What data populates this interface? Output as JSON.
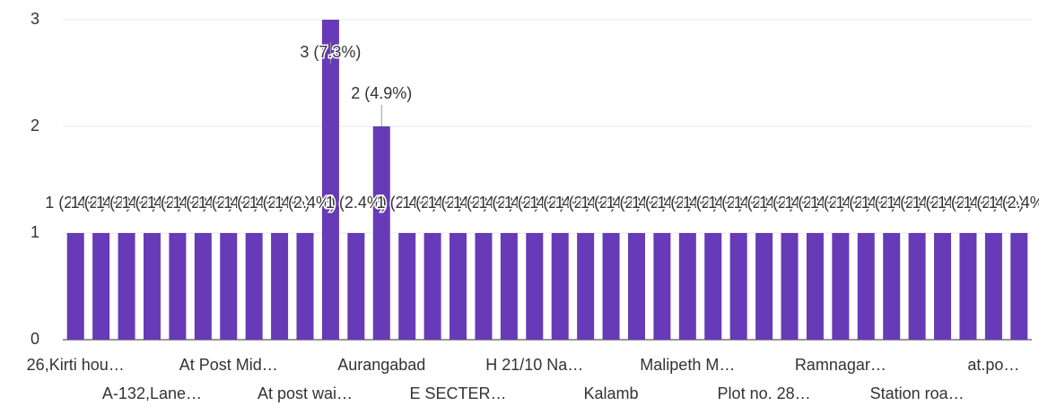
{
  "chart_data": {
    "type": "bar",
    "categories": [
      "26,Kirti hou…",
      null,
      null,
      "A-132,Lane…",
      null,
      null,
      "At Post Mid…",
      null,
      null,
      "At post wai…",
      null,
      null,
      "Aurangabad",
      null,
      null,
      "E SECTER…",
      null,
      null,
      "H 21/10 Na…",
      null,
      null,
      "Kalamb",
      null,
      null,
      "Malipeth M…",
      null,
      null,
      "Plot no. 28…",
      null,
      null,
      "Ramnagar…",
      null,
      null,
      "Station roa…",
      null,
      null,
      "at.po…",
      null
    ],
    "values": [
      1,
      1,
      1,
      1,
      1,
      1,
      1,
      1,
      1,
      1,
      3,
      1,
      2,
      1,
      1,
      1,
      1,
      1,
      1,
      1,
      1,
      1,
      1,
      1,
      1,
      1,
      1,
      1,
      1,
      1,
      1,
      1,
      1,
      1,
      1,
      1,
      1,
      1
    ],
    "value_labels": [
      "1 (2.4%)",
      "1 (2.4%)",
      "1 (2.4%)",
      "1 (2.4%)",
      "1 (2.4%)",
      "1 (2.4%)",
      "1 (2.4%)",
      "1 (2.4%)",
      "1 (2.4%)",
      "1 (2.4%)",
      "3 (7.3%)",
      "1 (2.4%)",
      "2 (4.9%)",
      "1 (2.4%)",
      "1 (2.4%)",
      "1 (2.4%)",
      "1 (2.4%)",
      "1 (2.4%)",
      "1 (2.4%)",
      "1 (2.4%)",
      "1 (2.4%)",
      "1 (2.4%)",
      "1 (2.4%)",
      "1 (2.4%)",
      "1 (2.4%)",
      "1 (2.4%)",
      "1 (2.4%)",
      "1 (2.4%)",
      "1 (2.4%)",
      "1 (2.4%)",
      "1 (2.4%)",
      "1 (2.4%)",
      "1 (2.4%)",
      "1 (2.4%)",
      "1 (2.4%)",
      "1 (2.4%)",
      "1 (2.4%)",
      "1 (2.4%)"
    ],
    "color": "#673ab7",
    "ylim": [
      0,
      3
    ],
    "yticks": [
      0,
      1,
      2,
      3
    ],
    "grid": true
  }
}
